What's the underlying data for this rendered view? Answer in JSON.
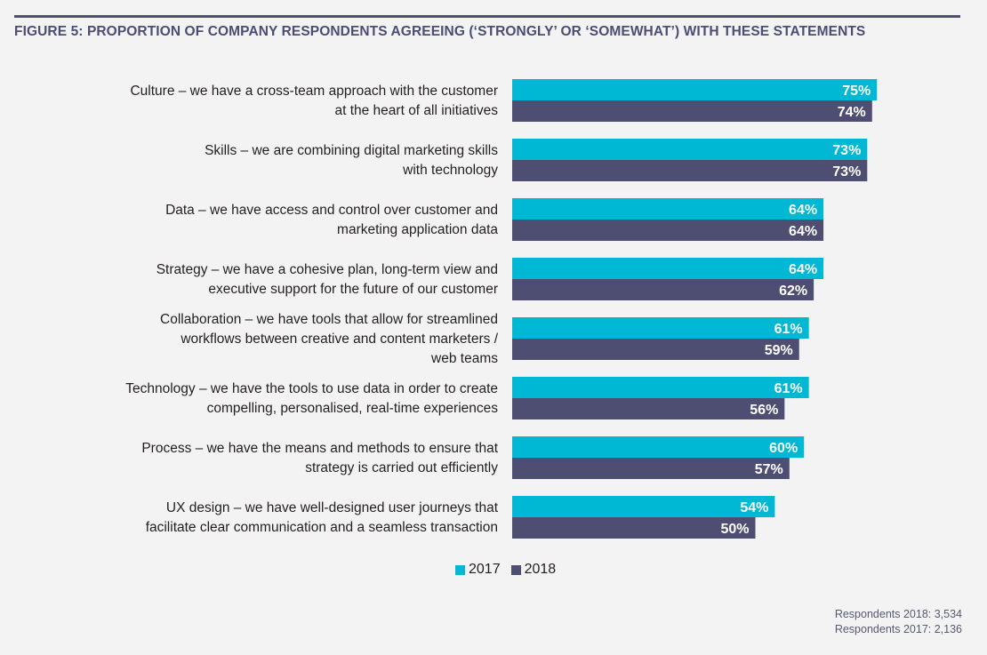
{
  "header": {
    "title": "FIGURE 5: PROPORTION OF COMPANY RESPONDENTS AGREEING (‘STRONGLY’ OR ‘SOMEWHAT’) WITH THESE STATEMENTS"
  },
  "colors": {
    "series_2017": "#00b8d4",
    "series_2018": "#4d4e72",
    "title": "#4b4d72",
    "background": "#f3f3f4"
  },
  "chart_data": {
    "type": "bar",
    "orientation": "horizontal",
    "title": "FIGURE 5: PROPORTION OF COMPANY RESPONDENTS AGREEING (‘STRONGLY’ OR ‘SOMEWHAT’) WITH THESE STATEMENTS",
    "xlabel": "",
    "ylabel": "",
    "xlim": [
      0,
      100
    ],
    "unit": "%",
    "grid": false,
    "legend_position": "bottom-center",
    "categories": [
      [
        "Culture – we have a cross-team approach with the customer",
        "at the heart of all initiatives"
      ],
      [
        "Skills – we are combining digital marketing skills",
        "with technology"
      ],
      [
        "Data – we have access and control over customer and",
        "marketing application data"
      ],
      [
        "Strategy – we have a cohesive plan, long-term view and",
        "executive support for the future of our customer"
      ],
      [
        "Collaboration – we have tools that allow for streamlined",
        "workflows between creative and content marketers /",
        "web teams"
      ],
      [
        "Technology – we have the tools to use data in order to create",
        "compelling, personalised, real-time experiences"
      ],
      [
        "Process – we have the means and methods to ensure that",
        "strategy is carried out efficiently"
      ],
      [
        "UX design – we have well-designed user journeys that",
        "facilitate clear communication and a seamless transaction"
      ]
    ],
    "series": [
      {
        "name": "2017",
        "color": "#00b8d4",
        "values": [
          75,
          73,
          64,
          64,
          61,
          61,
          60,
          54
        ]
      },
      {
        "name": "2018",
        "color": "#4d4e72",
        "values": [
          74,
          73,
          64,
          62,
          59,
          56,
          57,
          50
        ]
      }
    ]
  },
  "legend": {
    "items": [
      {
        "label": "2017"
      },
      {
        "label": "2018"
      }
    ]
  },
  "footnote": {
    "line1": "Respondents 2018: 3,534",
    "line2": "Respondents 2017: 2,136"
  }
}
